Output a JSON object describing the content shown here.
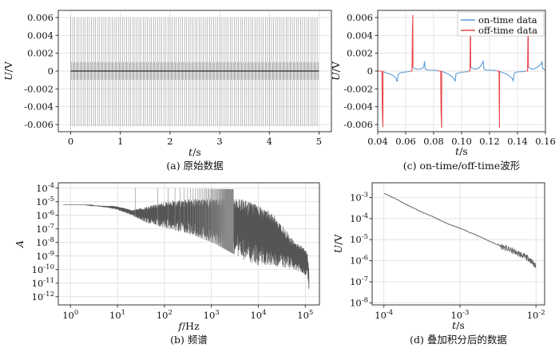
{
  "chart_data": [
    {
      "id": "a",
      "type": "line",
      "caption": "(a) 原始数据",
      "xlabel_var": "t",
      "xlabel_unit": "/s",
      "ylabel_var": "U",
      "ylabel_unit": "/V",
      "xlim": [
        -0.25,
        5.25
      ],
      "ylim": [
        -0.0068,
        0.0068
      ],
      "xticks": [
        0,
        1,
        2,
        3,
        4,
        5
      ],
      "xtick_labels": [
        "0",
        "1",
        "2",
        "3",
        "4",
        "5"
      ],
      "yticks": [
        -0.006,
        -0.004,
        -0.002,
        0,
        0.002,
        0.004,
        0.006
      ],
      "ytick_labels": [
        "-0.006",
        "-0.004",
        "-0.002",
        "0",
        "0.002",
        "0.004",
        "0.006"
      ],
      "grid": true,
      "signal": {
        "period_s": 0.0417,
        "pulse_high_V": 0.006,
        "pulse_low_V": -0.0062,
        "decay_amplitude_V": 0.001,
        "baseline_V": 0.0
      },
      "color": "#808080"
    },
    {
      "id": "c",
      "type": "line",
      "caption": "(c) on-time/off-time波形",
      "xlabel_var": "t",
      "xlabel_unit": "/s",
      "ylabel_var": "U",
      "ylabel_unit": "/V",
      "xlim": [
        0.04,
        0.16
      ],
      "ylim": [
        -0.0068,
        0.0068
      ],
      "xticks": [
        0.04,
        0.06,
        0.08,
        0.1,
        0.12,
        0.14,
        0.16
      ],
      "xtick_labels": [
        "0.04",
        "0.06",
        "0.08",
        "0.10",
        "0.12",
        "0.14",
        "0.16"
      ],
      "yticks": [
        -0.006,
        -0.004,
        -0.002,
        0,
        0.002,
        0.004,
        0.006
      ],
      "ytick_labels": [
        "-0.006",
        "-0.004",
        "-0.002",
        "0",
        "0.002",
        "0.004",
        "0.006"
      ],
      "grid": true,
      "legend_position": "top-right",
      "series": [
        {
          "name": "on-time data",
          "color": "#5b9bd5",
          "segments": [
            {
              "x": [
                0.0438,
                0.0442,
                0.046,
                0.05,
                0.053,
                0.054,
                0.0545,
                0.056,
                0.06,
                0.063
              ],
              "y": [
                0.0,
                -0.0001,
                -0.0002,
                -0.0004,
                -0.0008,
                -0.0012,
                -0.0004,
                -0.0002,
                -0.0001,
                -5e-05
              ]
            },
            {
              "x": [
                0.0652,
                0.066,
                0.068,
                0.07,
                0.072,
                0.073,
                0.0735,
                0.074,
                0.076,
                0.08,
                0.083
              ],
              "y": [
                0.0004,
                0.0003,
                0.0002,
                0.0002,
                0.0003,
                0.0005,
                0.0011,
                0.0002,
                0.0001,
                0.0001,
                5e-05
              ]
            },
            {
              "x": [
                0.0858,
                0.087,
                0.09,
                0.093,
                0.095,
                0.0955,
                0.096,
                0.098,
                0.102,
                0.105
              ],
              "y": [
                0.0,
                -0.0001,
                -0.0003,
                -0.0006,
                -0.001,
                -0.0011,
                -0.0003,
                -0.0002,
                -0.0001,
                -5e-05
              ]
            },
            {
              "x": [
                0.1065,
                0.108,
                0.11,
                0.113,
                0.1155,
                0.116,
                0.118,
                0.122,
                0.125
              ],
              "y": [
                0.0004,
                0.0003,
                0.0002,
                0.0004,
                0.0011,
                0.0002,
                0.0001,
                0.0001,
                5e-05
              ]
            },
            {
              "x": [
                0.1272,
                0.128,
                0.13,
                0.133,
                0.136,
                0.137,
                0.1375,
                0.138,
                0.14,
                0.144,
                0.146
              ],
              "y": [
                0.0,
                -0.0001,
                -0.0002,
                -0.0004,
                -0.0008,
                -0.0011,
                -0.0004,
                -0.0002,
                -0.0001,
                -5e-05,
                0.0
              ]
            },
            {
              "x": [
                0.1478,
                0.149,
                0.151,
                0.154,
                0.157,
                0.1575,
                0.158,
                0.159,
                0.16
              ],
              "y": [
                0.0004,
                0.0003,
                0.0002,
                0.0004,
                0.0008,
                0.0011,
                0.0003,
                0.0002,
                0.0001
              ]
            }
          ]
        },
        {
          "name": "off-time data",
          "color": "#e8474c",
          "segments": [
            {
              "x": [
                0.04,
                0.043,
                0.0433,
                0.0437,
                0.0438
              ],
              "y": [
                0.0,
                0.0,
                -0.0045,
                -0.0063,
                0.0
              ]
            },
            {
              "x": [
                0.063,
                0.0645,
                0.0648,
                0.0651,
                0.0652
              ],
              "y": [
                0.0,
                0.0,
                0.004,
                0.0063,
                0.0004
              ]
            },
            {
              "x": [
                0.083,
                0.085,
                0.0853,
                0.0857,
                0.0858
              ],
              "y": [
                0.0,
                0.0,
                -0.0045,
                -0.0064,
                0.0
              ]
            },
            {
              "x": [
                0.105,
                0.106,
                0.1062,
                0.1064,
                0.1065
              ],
              "y": [
                0.0,
                0.0,
                0.004,
                0.0063,
                0.0004
              ]
            },
            {
              "x": [
                0.125,
                0.1268,
                0.127,
                0.1271,
                0.1272
              ],
              "y": [
                0.0,
                0.0,
                -0.0045,
                -0.0064,
                0.0
              ]
            },
            {
              "x": [
                0.146,
                0.1472,
                0.1475,
                0.1477,
                0.1478
              ],
              "y": [
                0.0,
                0.0,
                0.004,
                0.0063,
                0.0004
              ]
            }
          ]
        }
      ]
    },
    {
      "id": "b",
      "type": "line",
      "caption": "(b) 频谱",
      "xlabel_var": "f",
      "xlabel_unit": "/Hz",
      "ylabel_var": "A",
      "ylabel_unit": "",
      "xscale": "log",
      "yscale": "log",
      "xlim": [
        0.55,
        200000
      ],
      "ylim": [
        2.5e-13,
        0.00025
      ],
      "xtick_exps": [
        0,
        1,
        2,
        3,
        4,
        5
      ],
      "ytick_exps": [
        -12,
        -11,
        -10,
        -9,
        -8,
        -7,
        -6,
        -5,
        -4
      ],
      "grid": true,
      "color": "#555555",
      "envelope_upper": {
        "x": [
          0.7,
          2,
          3,
          5,
          8,
          12,
          20,
          40,
          80,
          150,
          300,
          600,
          1200,
          2500,
          5000,
          10000,
          20000,
          40000,
          60000,
          90000,
          110000,
          120000
        ],
        "y": [
          6e-06,
          6e-06,
          5.5e-06,
          5e-06,
          5e-06,
          4e-06,
          2.5e-06,
          4e-06,
          8e-06,
          1.2e-05,
          1.5e-05,
          1.7e-05,
          2e-05,
          2e-05,
          1.5e-05,
          6e-06,
          1.5e-06,
          8e-08,
          1e-08,
          5e-09,
          2e-09,
          1e-10
        ]
      },
      "envelope_lower": {
        "x": [
          0.7,
          2,
          3,
          5,
          8,
          12,
          20,
          40,
          80,
          150,
          300,
          600,
          1200,
          2500,
          5000,
          10000,
          20000,
          40000,
          60000,
          90000,
          110000,
          120000
        ],
        "y": [
          6e-06,
          6e-06,
          5e-06,
          4e-06,
          3e-06,
          2e-06,
          1e-06,
          3e-07,
          1.5e-07,
          8e-08,
          5e-08,
          2e-08,
          8e-09,
          2e-09,
          5e-10,
          2e-10,
          2e-10,
          1.2e-10,
          1e-10,
          5e-11,
          3e-11,
          2e-12
        ]
      },
      "harmonics_start_hz": 24,
      "harmonic_spacing_hz": 48,
      "harmonic_peak": 0.0001
    },
    {
      "id": "d",
      "type": "line",
      "caption": "(d) 叠加积分后的数据",
      "xlabel_var": "t",
      "xlabel_unit": "/s",
      "ylabel_var": "U",
      "ylabel_unit": "/V",
      "xscale": "log",
      "yscale": "log",
      "xlim": [
        7e-05,
        0.013
      ],
      "ylim": [
        8e-09,
        0.005
      ],
      "xtick_exps": [
        -4,
        -3,
        -2
      ],
      "ytick_exps": [
        -8,
        -7,
        -6,
        -5,
        -4,
        -3
      ],
      "grid": true,
      "color": "#666666",
      "series": [
        {
          "x": [
            0.0001,
            0.00015,
            0.0002,
            0.0003,
            0.0005,
            0.0007,
            0.001,
            0.0015,
            0.002,
            0.003,
            0.004,
            0.005,
            0.006,
            0.007,
            0.008,
            0.009,
            0.01
          ],
          "y": [
            0.0016,
            0.0008,
            0.00045,
            0.00022,
            0.0001,
            5.5e-05,
            3.5e-05,
            1.9e-05,
            1.2e-05,
            6e-06,
            4e-06,
            2.8e-06,
            2.1e-06,
            1.6e-06,
            1.3e-06,
            8e-07,
            6e-07
          ]
        }
      ]
    }
  ]
}
